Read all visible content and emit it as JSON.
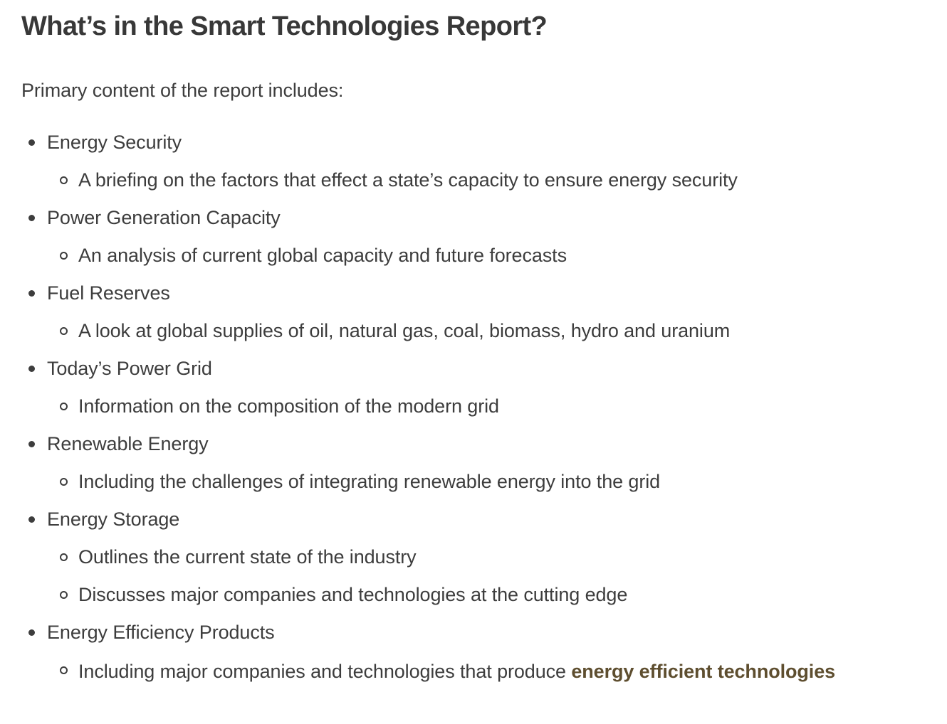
{
  "page": {
    "title": "What’s in the Smart Technologies Report?",
    "intro": "Primary content of the report includes:",
    "colors": {
      "body_text": "#3d3d3d",
      "heading_text": "#383838",
      "highlight_text": "#5e4e2f"
    },
    "items": [
      {
        "label": "Energy Security",
        "subs": [
          {
            "text": "A briefing on the factors that effect a state’s capacity to ensure energy security"
          }
        ]
      },
      {
        "label": "Power Generation Capacity",
        "subs": [
          {
            "text": "An analysis of current global capacity and future forecasts"
          }
        ]
      },
      {
        "label": "Fuel Reserves",
        "subs": [
          {
            "text": "A look at global supplies of oil, natural gas, coal, biomass, hydro and uranium"
          }
        ]
      },
      {
        "label": "Today’s Power Grid",
        "subs": [
          {
            "text": "Information on the composition of the modern grid"
          }
        ]
      },
      {
        "label": "Renewable Energy",
        "subs": [
          {
            "text": "Including the challenges of integrating renewable energy into the grid"
          }
        ]
      },
      {
        "label": "Energy Storage",
        "subs": [
          {
            "text": "Outlines the current state of the industry"
          },
          {
            "text": "Discusses major companies and technologies at the cutting edge"
          }
        ]
      },
      {
        "label": "Energy Efficiency Products",
        "subs": [
          {
            "text": "Including major companies and technologies that produce ",
            "highlight": "energy efficient technologies"
          }
        ]
      }
    ]
  }
}
